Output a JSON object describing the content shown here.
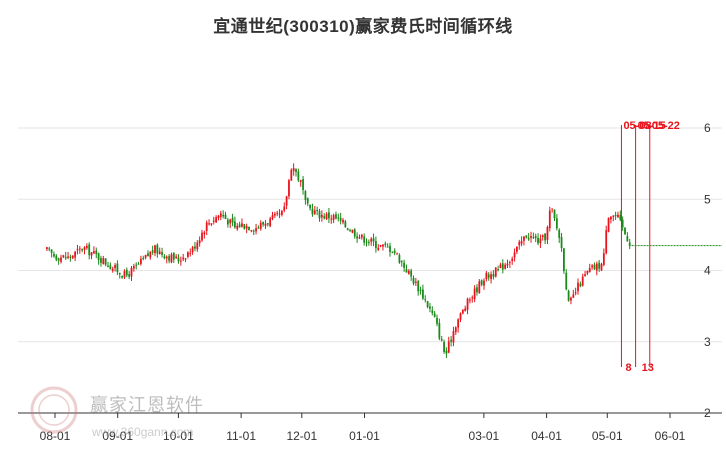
{
  "title": "宜通世纪(300310)赢家费氏时间循环线",
  "watermark": {
    "brand": "赢家江恩软件",
    "url": "www.360gann.com",
    "logo_text": "赢"
  },
  "colors": {
    "up": "#e8141c",
    "down": "#1a8a1a",
    "grid": "#e6e6e6",
    "marker": "#e8141c",
    "dotted": "#1a8a1a"
  },
  "chart_data": {
    "type": "candlestick",
    "title": "宜通世纪(300310)赢家费氏时间循环线",
    "y_ticks": [
      2,
      3,
      4,
      5,
      6
    ],
    "ylim": [
      2,
      6.5
    ],
    "x_ticks": [
      "08-01",
      "09-01",
      "10-01",
      "11-01",
      "12-01",
      "01-01",
      "03-01",
      "04-01",
      "05-01",
      "06-01"
    ],
    "grid": "horizontal",
    "approx_close_path": [
      [
        "07-28",
        4.28
      ],
      [
        "08-01",
        4.2
      ],
      [
        "08-08",
        4.18
      ],
      [
        "08-15",
        4.32
      ],
      [
        "08-22",
        4.2
      ],
      [
        "08-29",
        4.05
      ],
      [
        "09-01",
        4.0
      ],
      [
        "09-05",
        3.92
      ],
      [
        "09-12",
        4.1
      ],
      [
        "09-19",
        4.3
      ],
      [
        "09-26",
        4.2
      ],
      [
        "10-01",
        4.15
      ],
      [
        "10-08",
        4.3
      ],
      [
        "10-15",
        4.65
      ],
      [
        "10-22",
        4.8
      ],
      [
        "10-29",
        4.6
      ],
      [
        "11-01",
        4.65
      ],
      [
        "11-08",
        4.6
      ],
      [
        "11-15",
        4.7
      ],
      [
        "11-22",
        4.8
      ],
      [
        "11-26",
        5.5
      ],
      [
        "12-01",
        5.2
      ],
      [
        "12-03",
        4.9
      ],
      [
        "12-10",
        4.78
      ],
      [
        "12-17",
        4.75
      ],
      [
        "12-24",
        4.6
      ],
      [
        "12-31",
        4.45
      ],
      [
        "01-01",
        4.45
      ],
      [
        "01-08",
        4.35
      ],
      [
        "01-15",
        4.3
      ],
      [
        "01-22",
        4.0
      ],
      [
        "01-29",
        3.7
      ],
      [
        "02-05",
        3.3
      ],
      [
        "02-10",
        2.8
      ],
      [
        "02-15",
        3.25
      ],
      [
        "02-22",
        3.6
      ],
      [
        "03-01",
        3.9
      ],
      [
        "03-08",
        4.0
      ],
      [
        "03-15",
        4.2
      ],
      [
        "03-22",
        4.5
      ],
      [
        "03-29",
        4.4
      ],
      [
        "04-01",
        4.5
      ],
      [
        "04-03",
        4.9
      ],
      [
        "04-08",
        4.4
      ],
      [
        "04-12",
        3.5
      ],
      [
        "04-17",
        3.8
      ],
      [
        "04-22",
        4.0
      ],
      [
        "04-29",
        4.1
      ],
      [
        "05-01",
        4.8
      ],
      [
        "05-06",
        4.75
      ],
      [
        "05-10",
        4.5
      ],
      [
        "05-13",
        4.35
      ]
    ],
    "projection_level": 4.35,
    "markers": [
      {
        "date": "05-08",
        "label_top": "05-08"
      },
      {
        "date": "05-15",
        "label_top": "05-15"
      },
      {
        "date": "05-22",
        "label_top": "05-22"
      }
    ],
    "bottom_labels": [
      "8",
      "13"
    ]
  }
}
